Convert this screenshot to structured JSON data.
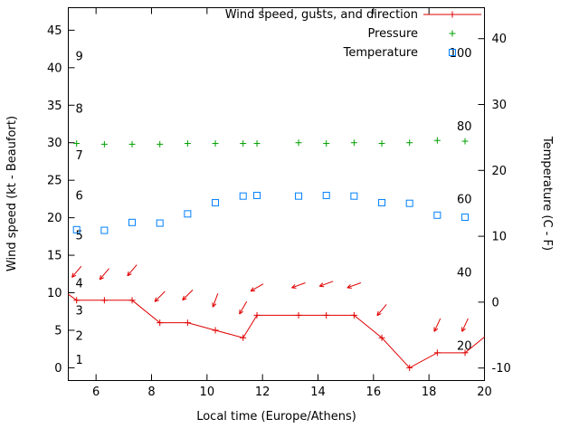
{
  "chart_data": {
    "type": "line",
    "title": "",
    "xlabel": "Local time (Europe/Athens)",
    "x_range": [
      5,
      20
    ],
    "x_ticks": [
      6,
      8,
      10,
      12,
      14,
      16,
      18,
      20
    ],
    "axes": {
      "left": {
        "label": "Wind speed (kt - Beaufort)",
        "range": [
          -1.7,
          48.0
        ],
        "ticks": [
          0,
          5,
          10,
          15,
          20,
          25,
          30,
          35,
          40,
          45
        ]
      },
      "right": {
        "label": "Temperature (C - F)",
        "range_c": [
          -11.9,
          44.7
        ],
        "ticks_c": [
          -10,
          0,
          10,
          20,
          30,
          40
        ],
        "inner_fahrenheit_labels": [
          20,
          40,
          60,
          80,
          100
        ]
      }
    },
    "beaufort_scale_labels": [
      {
        "label": "1",
        "kt": 1.0
      },
      {
        "label": "2",
        "kt": 4.2
      },
      {
        "label": "3",
        "kt": 7.6
      },
      {
        "label": "4",
        "kt": 11.2
      },
      {
        "label": "5",
        "kt": 17.6
      },
      {
        "label": "6",
        "kt": 22.9
      },
      {
        "label": "7",
        "kt": 28.3
      },
      {
        "label": "8",
        "kt": 34.5
      },
      {
        "label": "9",
        "kt": 41.5
      }
    ],
    "legend": [
      {
        "label": "Wind speed, gusts, and direction",
        "series": "wind",
        "marker": "line-plus"
      },
      {
        "label": "Pressure",
        "series": "pressure",
        "marker": "plus"
      },
      {
        "label": "Temperature",
        "series": "temperature",
        "marker": "square"
      }
    ],
    "colors": {
      "wind": "#e00000",
      "pressure": "#00a000",
      "temperature": "#0080ff",
      "axis": "#000000"
    },
    "x_values": [
      5.3,
      6.3,
      7.3,
      8.3,
      9.3,
      10.3,
      11.3,
      11.8,
      13.3,
      14.3,
      15.3,
      16.3,
      17.3,
      18.3,
      19.3
    ],
    "series": {
      "wind_speed_kt": [
        9,
        9,
        9,
        6,
        6,
        5,
        4,
        7,
        7,
        7,
        7,
        4,
        0,
        2,
        2
      ],
      "wind_line_edge_start": [
        5.0,
        9.8
      ],
      "wind_line_edge_end": [
        20.0,
        4.1
      ],
      "gust_arrows": [
        {
          "t": 5.3,
          "kt": 12.8,
          "dir": 130
        },
        {
          "t": 6.3,
          "kt": 12.5,
          "dir": 130
        },
        {
          "t": 7.3,
          "kt": 13.0,
          "dir": 130
        },
        {
          "t": 8.3,
          "kt": 9.5,
          "dir": 135
        },
        {
          "t": 9.3,
          "kt": 9.7,
          "dir": 135
        },
        {
          "t": 10.3,
          "kt": 9.0,
          "dir": 110
        },
        {
          "t": 11.3,
          "kt": 8.0,
          "dir": 120
        },
        {
          "t": 11.8,
          "kt": 10.7,
          "dir": 150
        },
        {
          "t": 13.3,
          "kt": 11.0,
          "dir": 160
        },
        {
          "t": 14.3,
          "kt": 11.2,
          "dir": 160
        },
        {
          "t": 15.3,
          "kt": 11.0,
          "dir": 160
        },
        {
          "t": 16.3,
          "kt": 7.7,
          "dir": 130
        },
        {
          "t": 18.3,
          "kt": 5.7,
          "dir": 115
        },
        {
          "t": 19.3,
          "kt": 5.7,
          "dir": 115
        }
      ],
      "pressure_left_axis_units": [
        29.9,
        29.8,
        29.8,
        29.8,
        29.9,
        29.9,
        29.9,
        29.9,
        30.0,
        29.9,
        30.0,
        29.9,
        30.0,
        30.3,
        30.2
      ],
      "temperature_c": [
        11.0,
        10.9,
        12.1,
        12.0,
        13.4,
        15.1,
        16.1,
        16.2,
        16.1,
        16.2,
        16.1,
        15.1,
        15.0,
        13.2,
        12.9
      ]
    }
  }
}
